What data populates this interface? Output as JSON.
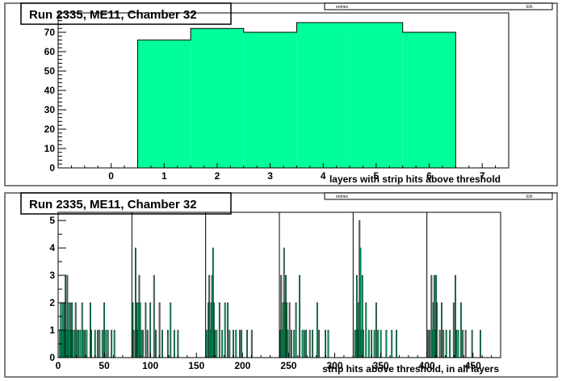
{
  "chart_data": [
    {
      "type": "bar",
      "title": "Run 2335, ME11, Chamber 32",
      "stats_box": {
        "left_label": "entries",
        "right_label": "Eth"
      },
      "xlabel": "layers with strip hits above threshold",
      "ylabel": "",
      "xlim": [
        -1.0,
        7.5
      ],
      "ylim": [
        0,
        80
      ],
      "x_ticks": [
        0,
        1,
        2,
        3,
        4,
        5,
        6,
        7
      ],
      "y_ticks": [
        0,
        10,
        20,
        30,
        40,
        50,
        60,
        70
      ],
      "bin_width": 1,
      "categories": [
        1,
        2,
        3,
        4,
        5,
        6
      ],
      "values": [
        66,
        72,
        70,
        75,
        75,
        70
      ],
      "fill_color": "#00ff99",
      "grid": false
    },
    {
      "type": "bar",
      "title": "Run 2335, ME11, Chamber 32",
      "stats_box": {
        "left_label": "entries",
        "right_label": "Eth"
      },
      "xlabel": "strip hits above threshold, in all layers",
      "ylabel": "",
      "xlim": [
        0,
        480
      ],
      "ylim": [
        0,
        5.3
      ],
      "x_ticks": [
        0,
        50,
        100,
        150,
        200,
        250,
        300,
        350,
        400,
        450
      ],
      "y_ticks": [
        0,
        1,
        2,
        3,
        4,
        5
      ],
      "bin_width": 1,
      "fill_color": "#00ff99",
      "grid": false,
      "layer_boundaries": [
        80,
        160,
        240,
        320,
        400
      ],
      "points": [
        [
          2,
          1
        ],
        [
          3,
          2
        ],
        [
          4,
          1
        ],
        [
          5,
          2
        ],
        [
          6,
          1
        ],
        [
          7,
          2
        ],
        [
          8,
          3
        ],
        [
          9,
          1
        ],
        [
          10,
          3
        ],
        [
          11,
          2
        ],
        [
          12,
          1
        ],
        [
          13,
          2
        ],
        [
          14,
          1
        ],
        [
          15,
          2
        ],
        [
          16,
          1
        ],
        [
          18,
          1
        ],
        [
          19,
          2
        ],
        [
          20,
          1
        ],
        [
          22,
          1
        ],
        [
          24,
          1
        ],
        [
          26,
          2
        ],
        [
          27,
          1
        ],
        [
          29,
          1
        ],
        [
          31,
          1
        ],
        [
          35,
          2
        ],
        [
          36,
          1
        ],
        [
          40,
          1
        ],
        [
          43,
          1
        ],
        [
          45,
          1
        ],
        [
          48,
          1
        ],
        [
          50,
          2
        ],
        [
          52,
          1
        ],
        [
          54,
          1
        ],
        [
          58,
          1
        ],
        [
          61,
          1
        ],
        [
          81,
          2
        ],
        [
          82,
          1
        ],
        [
          84,
          4
        ],
        [
          85,
          2
        ],
        [
          86,
          1
        ],
        [
          87,
          2
        ],
        [
          88,
          3
        ],
        [
          89,
          2
        ],
        [
          90,
          1
        ],
        [
          92,
          1
        ],
        [
          95,
          2
        ],
        [
          97,
          1
        ],
        [
          100,
          2
        ],
        [
          104,
          3
        ],
        [
          106,
          1
        ],
        [
          110,
          2
        ],
        [
          113,
          1
        ],
        [
          119,
          1
        ],
        [
          122,
          2
        ],
        [
          126,
          1
        ],
        [
          130,
          1
        ],
        [
          161,
          1
        ],
        [
          163,
          2
        ],
        [
          164,
          3
        ],
        [
          165,
          1
        ],
        [
          166,
          2
        ],
        [
          167,
          3
        ],
        [
          168,
          4
        ],
        [
          169,
          2
        ],
        [
          170,
          1
        ],
        [
          172,
          1
        ],
        [
          175,
          2
        ],
        [
          178,
          1
        ],
        [
          181,
          2
        ],
        [
          184,
          2
        ],
        [
          186,
          1
        ],
        [
          190,
          1
        ],
        [
          193,
          1
        ],
        [
          197,
          1
        ],
        [
          199,
          1
        ],
        [
          205,
          1
        ],
        [
          210,
          1
        ],
        [
          241,
          1
        ],
        [
          242,
          3
        ],
        [
          243,
          1
        ],
        [
          244,
          2
        ],
        [
          245,
          4
        ],
        [
          246,
          2
        ],
        [
          247,
          3
        ],
        [
          248,
          2
        ],
        [
          249,
          1
        ],
        [
          251,
          2
        ],
        [
          253,
          1
        ],
        [
          256,
          1
        ],
        [
          258,
          2
        ],
        [
          262,
          3
        ],
        [
          265,
          1
        ],
        [
          267,
          1
        ],
        [
          269,
          1
        ],
        [
          273,
          1
        ],
        [
          276,
          1
        ],
        [
          281,
          2
        ],
        [
          283,
          1
        ],
        [
          290,
          1
        ],
        [
          293,
          1
        ],
        [
          322,
          1
        ],
        [
          323,
          1
        ],
        [
          324,
          3
        ],
        [
          325,
          1
        ],
        [
          326,
          2
        ],
        [
          327,
          5
        ],
        [
          328,
          4
        ],
        [
          329,
          1
        ],
        [
          330,
          3
        ],
        [
          331,
          1
        ],
        [
          334,
          2
        ],
        [
          337,
          1
        ],
        [
          340,
          1
        ],
        [
          343,
          1
        ],
        [
          345,
          2
        ],
        [
          347,
          1
        ],
        [
          350,
          1
        ],
        [
          356,
          1
        ],
        [
          362,
          1
        ],
        [
          367,
          1
        ],
        [
          401,
          1
        ],
        [
          403,
          1
        ],
        [
          405,
          3
        ],
        [
          406,
          1
        ],
        [
          407,
          2
        ],
        [
          408,
          3
        ],
        [
          409,
          1
        ],
        [
          410,
          3
        ],
        [
          411,
          2
        ],
        [
          414,
          1
        ],
        [
          416,
          2
        ],
        [
          418,
          1
        ],
        [
          421,
          1
        ],
        [
          425,
          1
        ],
        [
          429,
          2
        ],
        [
          431,
          3
        ],
        [
          432,
          1
        ],
        [
          434,
          1
        ],
        [
          437,
          2
        ],
        [
          439,
          1
        ],
        [
          442,
          1
        ],
        [
          449,
          1
        ],
        [
          458,
          1
        ]
      ]
    }
  ]
}
